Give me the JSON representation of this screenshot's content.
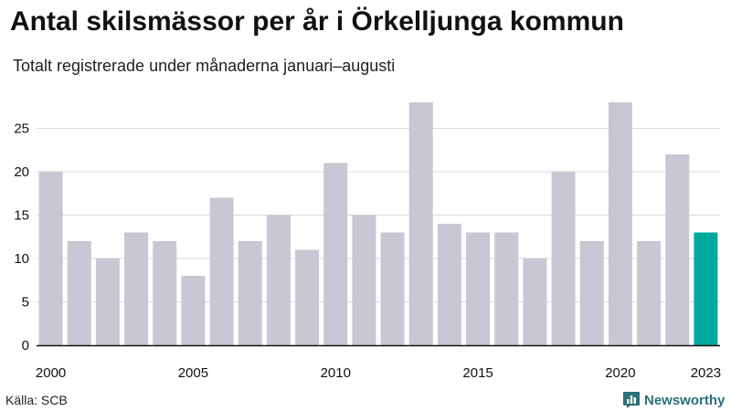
{
  "title": "Antal skilsmässor per år i Örkelljunga kommun",
  "subtitle": "Totalt registrerade under månaderna januari–augusti",
  "source": "Källa: SCB",
  "brand": {
    "name": "Newsworthy",
    "icon": "newsworthy-logo-icon",
    "color": "#2b6f78"
  },
  "colors": {
    "bar": "#c8c7d3",
    "highlight": "#00a99d",
    "grid": "#d9d9d9",
    "axis": "#111111"
  },
  "chart_data": {
    "type": "bar",
    "title": "Antal skilsmässor per år i Örkelljunga kommun",
    "subtitle": "Totalt registrerade under månaderna januari–augusti",
    "xlabel": "",
    "ylabel": "",
    "categories": [
      2000,
      2001,
      2002,
      2003,
      2004,
      2005,
      2006,
      2007,
      2008,
      2009,
      2010,
      2011,
      2012,
      2013,
      2014,
      2015,
      2016,
      2017,
      2018,
      2019,
      2020,
      2021,
      2022,
      2023
    ],
    "values": [
      20,
      12,
      10,
      13,
      12,
      8,
      17,
      12,
      15,
      11,
      21,
      15,
      13,
      28,
      14,
      13,
      13,
      10,
      20,
      12,
      28,
      12,
      22,
      13
    ],
    "highlight_category": 2023,
    "ylim": [
      0,
      28
    ],
    "yticks": [
      0,
      5,
      10,
      15,
      20,
      25
    ],
    "xtick_labels": [
      "2000",
      "2005",
      "2010",
      "2015",
      "2020",
      "2023"
    ],
    "grid": true,
    "legend": "none"
  }
}
